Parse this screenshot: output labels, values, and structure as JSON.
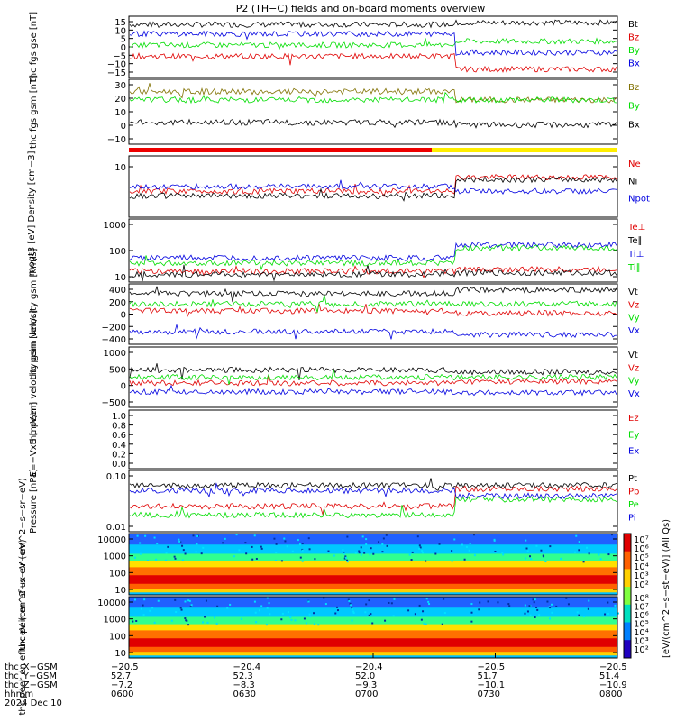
{
  "title": "P2 (TH−C) fields and on-board moments overview",
  "footer": {
    "row_labels": [
      "thc_X−GSM",
      "thc_Y−GSM",
      "thc_Z−GSM",
      "hhmm",
      "2024 Dec 10"
    ],
    "columns": [
      {
        "x": "−20.5",
        "y": "52.7",
        "z": "−7.2",
        "t": "0600"
      },
      {
        "x": "−20.4",
        "y": "52.3",
        "z": "−8.3",
        "t": "0630"
      },
      {
        "x": "−20.4",
        "y": "52.0",
        "z": "−9.3",
        "t": "0700"
      },
      {
        "x": "−20.5",
        "y": "51.7",
        "z": "−10.1",
        "t": "0730"
      },
      {
        "x": "−20.5",
        "y": "51.4",
        "z": "−10.9",
        "t": "0800"
      }
    ]
  },
  "colors": {
    "black": "#000000",
    "red": "#e00000",
    "green": "#00dd00",
    "blue": "#0000e0",
    "olive": "#807000"
  },
  "colorbar": {
    "title": "[eV/(cm^2−s−st−eV)] (All Qs)",
    "ticks_ion": [
      "10⁷",
      "10⁶",
      "10⁵",
      "10⁴",
      "10³",
      "10²"
    ],
    "ticks_ele": [
      "10⁸",
      "10⁷",
      "10⁶",
      "10⁵",
      "10⁴",
      "10³",
      "10²"
    ]
  },
  "chart_data": [
    {
      "type": "line",
      "id": "fgs_gse",
      "ylabel": "thc fgs gse [nT]",
      "yticks": [
        "15",
        "10",
        "5",
        "0",
        "−5",
        "−10",
        "−15"
      ],
      "ylim": [
        -15,
        15
      ],
      "series": [
        {
          "name": "Bt",
          "color": "black",
          "level": 12,
          "after": 13
        },
        {
          "name": "Bz",
          "color": "red",
          "level": -5,
          "after": -12
        },
        {
          "name": "By",
          "color": "green",
          "level": 1,
          "after": 3
        },
        {
          "name": "Bx",
          "color": "blue",
          "level": 7,
          "after": -3
        }
      ]
    },
    {
      "type": "line",
      "id": "fgs_gsm",
      "ylabel": "thc fgs gsm [nT]",
      "yticks": [
        "30",
        "20",
        "10",
        "0",
        "−10"
      ],
      "ylim": [
        -15,
        35
      ],
      "series": [
        {
          "name": "Bz",
          "color": "olive",
          "level": 27,
          "after": 20
        },
        {
          "name": "By",
          "color": "green",
          "level": 20,
          "after": 20
        },
        {
          "name": "Bx",
          "color": "black",
          "level": 1,
          "after": -1
        }
      ]
    },
    {
      "type": "line",
      "id": "density",
      "ylabel": "Density [cm−3]",
      "yticks": [
        "10"
      ],
      "ylim": [
        0,
        12
      ],
      "series": [
        {
          "name": "Ne",
          "color": "red",
          "level": 5,
          "after": 8
        },
        {
          "name": "Ni",
          "color": "black",
          "level": 4,
          "after": 7.5
        },
        {
          "name": "Npot",
          "color": "blue",
          "level": 6,
          "after": 5
        }
      ]
    },
    {
      "type": "line",
      "id": "temperature",
      "ylabel": "moqt3 [eV]",
      "yticks": [
        "1000",
        "100",
        "10"
      ],
      "ylim": [
        1,
        4.5
      ],
      "series": [
        {
          "name": "Te⊥",
          "color": "red",
          "level": 1.5,
          "after": 1.6
        },
        {
          "name": "Te∥",
          "color": "black",
          "level": 1.3,
          "after": 1.4
        },
        {
          "name": "Ti⊥",
          "color": "blue",
          "level": 2.3,
          "after": 3.1
        },
        {
          "name": "Ti∥",
          "color": "green",
          "level": 2,
          "after": 2.9
        }
      ]
    },
    {
      "type": "line",
      "id": "peim_velocity",
      "ylabel": "thc peim velocity gsm [km/s]",
      "yticks": [
        "400",
        "200",
        "0",
        "−200",
        "−400"
      ],
      "ylim": [
        -500,
        450
      ],
      "series": [
        {
          "name": "Vt",
          "color": "black",
          "level": 330,
          "after": 390
        },
        {
          "name": "Vz",
          "color": "red",
          "level": 30,
          "after": -10
        },
        {
          "name": "Vy",
          "color": "green",
          "level": 150,
          "after": 150
        },
        {
          "name": "Vx",
          "color": "blue",
          "level": -330,
          "after": -380
        }
      ]
    },
    {
      "type": "line",
      "id": "peem_velocity",
      "ylabel": "thc peem velocity gsm [km/s]",
      "yticks": [
        "1000",
        "500",
        "0",
        "−500"
      ],
      "ylim": [
        -800,
        1100
      ],
      "series": [
        {
          "name": "Vt",
          "color": "black",
          "level": 400,
          "after": 330
        },
        {
          "name": "Vz",
          "color": "red",
          "level": -50,
          "after": 0
        },
        {
          "name": "Vy",
          "color": "green",
          "level": 150,
          "after": 150
        },
        {
          "name": "Vx",
          "color": "blue",
          "level": -350,
          "after": -380
        }
      ]
    },
    {
      "type": "line",
      "id": "efield",
      "ylabel": "E=−VxB [mV/m]",
      "yticks": [
        "1.0",
        "0.8",
        "0.6",
        "0.4",
        "0.2",
        "0.0"
      ],
      "ylim": [
        0,
        1
      ],
      "series": [
        {
          "name": "Ez",
          "color": "red"
        },
        {
          "name": "Ey",
          "color": "green"
        },
        {
          "name": "Ex",
          "color": "blue"
        }
      ]
    },
    {
      "type": "line",
      "id": "pressure",
      "ylabel": "Pressure [nPa]",
      "yticks": [
        "0.10",
        "0.01"
      ],
      "ylim": [
        -2.3,
        -0.7
      ],
      "series": [
        {
          "name": "Pt",
          "color": "black",
          "level": -1.05,
          "after": -1.05
        },
        {
          "name": "Pb",
          "color": "red",
          "level": -1.65,
          "after": -1.15
        },
        {
          "name": "Pe",
          "color": "green",
          "level": -1.9,
          "after": -1.45
        },
        {
          "name": "Pi",
          "color": "blue",
          "level": -1.2,
          "after": -1.35
        }
      ]
    },
    {
      "type": "heatmap",
      "id": "peir_spec",
      "ylabel": "thc peir en eflux eV (cm^2−s−sr−eV)",
      "yticks": [
        "10000",
        "1000",
        "100",
        "10"
      ]
    },
    {
      "type": "heatmap",
      "id": "peer_spec",
      "ylabel": "thc peer en eflux eV (cm^2−s−sr−eV)",
      "yticks": [
        "10000",
        "1000",
        "100",
        "10"
      ]
    }
  ]
}
